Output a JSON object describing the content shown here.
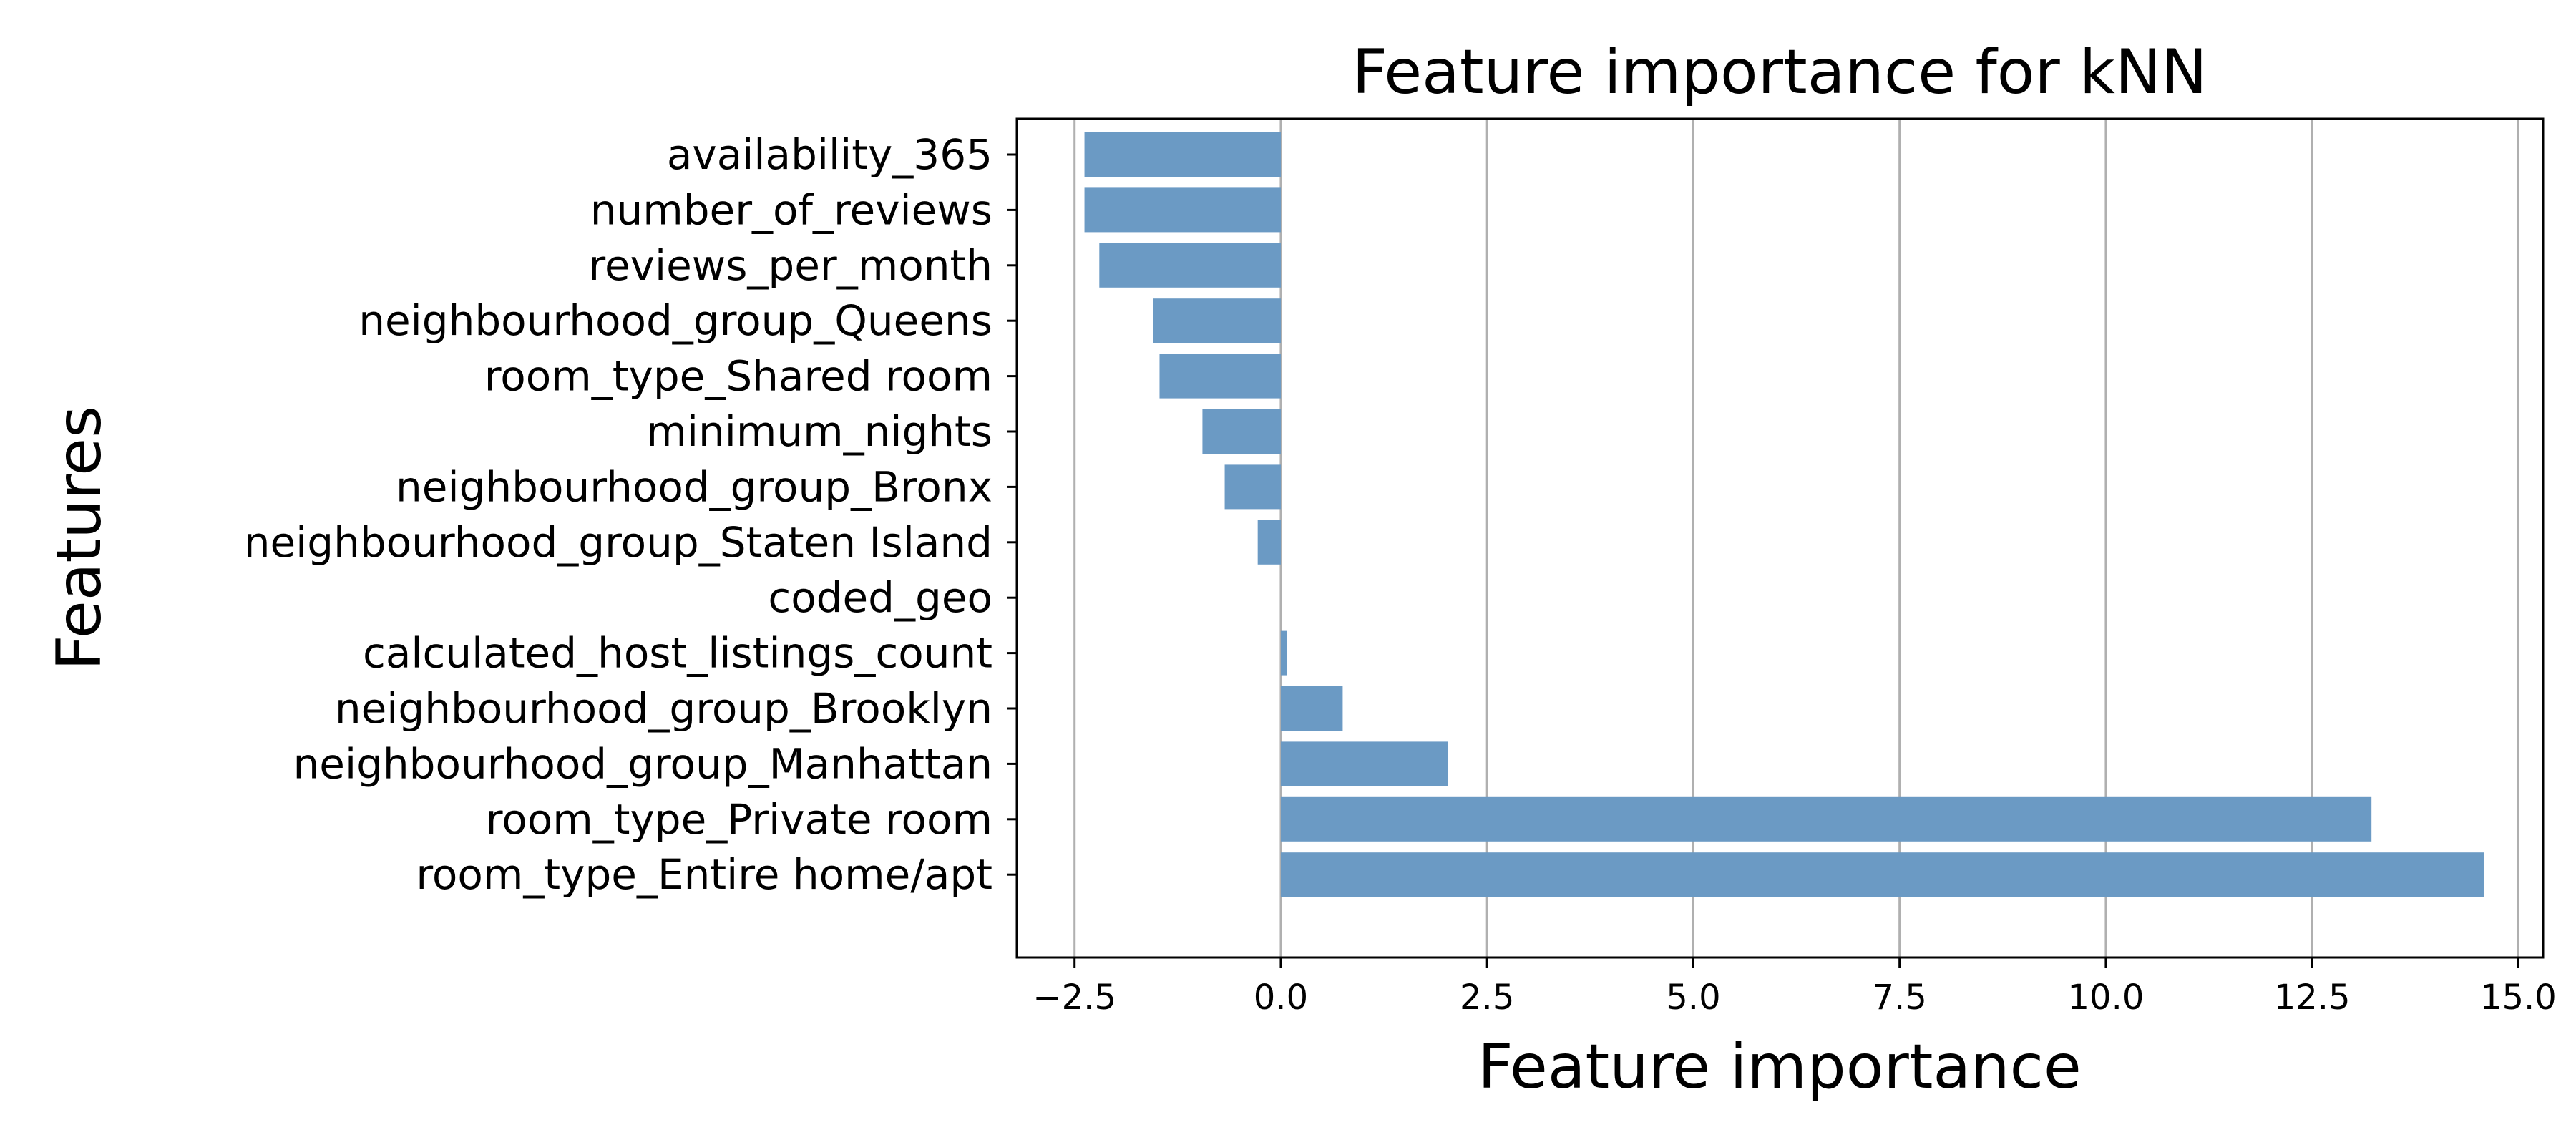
{
  "chart_data": {
    "type": "bar",
    "orientation": "horizontal",
    "title": "Feature importance for kNN",
    "xlabel": "Feature importance",
    "ylabel": "Features",
    "categories": [
      "availability_365",
      "number_of_reviews",
      "reviews_per_month",
      "neighbourhood_group_Queens",
      "room_type_Shared room",
      "minimum_nights",
      "neighbourhood_group_Bronx",
      "neighbourhood_group_Staten Island",
      "coded_geo",
      "calculated_host_listings_count",
      "neighbourhood_group_Brooklyn",
      "neighbourhood_group_Manhattan",
      "room_type_Private room",
      "room_type_Entire home/apt"
    ],
    "values": [
      -2.38,
      -2.38,
      -2.2,
      -1.55,
      -1.47,
      -0.95,
      -0.68,
      -0.28,
      0.0,
      0.07,
      0.75,
      2.03,
      13.22,
      14.58
    ],
    "xlim": [
      -3.2,
      15.3
    ],
    "xticks": [
      -2.5,
      0.0,
      2.5,
      5.0,
      7.5,
      10.0,
      12.5,
      15.0
    ],
    "xtick_labels": [
      "−2.5",
      "0.0",
      "2.5",
      "5.0",
      "7.5",
      "10.0",
      "12.5",
      "15.0"
    ],
    "grid": "x-axis vertical lines",
    "legend": "none",
    "colors": {
      "bar": "#6b9ac4",
      "grid": "#b0b0b0",
      "axes": "#000000"
    }
  }
}
